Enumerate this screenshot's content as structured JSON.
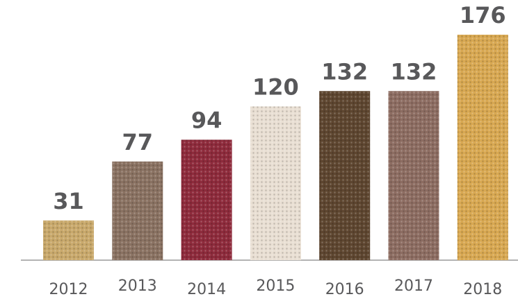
{
  "chart_data": {
    "type": "bar",
    "categories": [
      "2012",
      "2013",
      "2014",
      "2015",
      "2016",
      "2017",
      "2018"
    ],
    "values": [
      31,
      77,
      94,
      120,
      132,
      132,
      176
    ],
    "colors": [
      "#c9a96c",
      "#8a7262",
      "#8e2b3c",
      "#e9dfd3",
      "#5e4630",
      "#8d6d62",
      "#d8a852"
    ]
  }
}
